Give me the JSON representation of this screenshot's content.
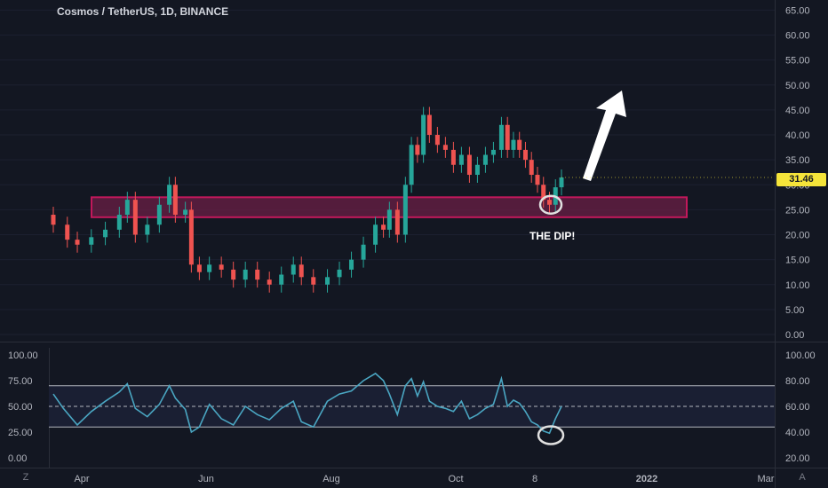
{
  "header": {
    "title": "Cosmos / TetherUS, 1D, BINANCE"
  },
  "price_tag": "31.46",
  "annotation": {
    "dip_label": "THE DIP!"
  },
  "corners": {
    "left": "Z",
    "right": "A"
  },
  "colors": {
    "background": "#131722",
    "up": "#26a69a",
    "down": "#ef5350",
    "zone_fill": "#6b1f45",
    "zone_stroke": "#c2185b",
    "rsi_line": "#4aa6c2",
    "axis_text": "#b2b5be",
    "price_tag": "#f5e43a"
  },
  "chart_data": [
    {
      "type": "candlestick",
      "title": "Cosmos / TetherUS, 1D, BINANCE",
      "y_ticks": [
        "0.00",
        "5.00",
        "10.00",
        "15.00",
        "20.00",
        "25.00",
        "30.00",
        "35.00",
        "40.00",
        "45.00",
        "50.00",
        "55.00",
        "60.00",
        "65.00"
      ],
      "ylim": [
        0,
        67
      ],
      "x_ticks": [
        "Apr",
        "Jun",
        "Aug",
        "Oct",
        "8",
        "2022",
        "Mar"
      ],
      "last_price": 31.46,
      "support_zone": [
        23.5,
        27.5
      ],
      "series": [
        {
          "x": "Mar 20",
          "close": 22.0
        },
        {
          "x": "Mar 27",
          "close": 19.0
        },
        {
          "x": "Apr 01",
          "close": 18.0
        },
        {
          "x": "Apr 08",
          "close": 19.5
        },
        {
          "x": "Apr 15",
          "close": 21.0
        },
        {
          "x": "Apr 22",
          "close": 24.0
        },
        {
          "x": "Apr 26",
          "close": 27.0
        },
        {
          "x": "Apr 30",
          "close": 20.0
        },
        {
          "x": "May 06",
          "close": 22.0
        },
        {
          "x": "May 12",
          "close": 26.0
        },
        {
          "x": "May 17",
          "close": 30.0
        },
        {
          "x": "May 20",
          "close": 24.0
        },
        {
          "x": "May 25",
          "close": 25.0
        },
        {
          "x": "May 28",
          "close": 14.0
        },
        {
          "x": "Jun 01",
          "close": 12.5
        },
        {
          "x": "Jun 06",
          "close": 14.0
        },
        {
          "x": "Jun 12",
          "close": 13.0
        },
        {
          "x": "Jun 18",
          "close": 11.0
        },
        {
          "x": "Jun 24",
          "close": 13.0
        },
        {
          "x": "Jun 30",
          "close": 11.0
        },
        {
          "x": "Jul 06",
          "close": 10.0
        },
        {
          "x": "Jul 12",
          "close": 12.0
        },
        {
          "x": "Jul 18",
          "close": 14.0
        },
        {
          "x": "Jul 22",
          "close": 11.5
        },
        {
          "x": "Jul 28",
          "close": 10.0
        },
        {
          "x": "Aug 04",
          "close": 11.5
        },
        {
          "x": "Aug 10",
          "close": 13.0
        },
        {
          "x": "Aug 16",
          "close": 15.0
        },
        {
          "x": "Aug 22",
          "close": 18.0
        },
        {
          "x": "Aug 28",
          "close": 22.0
        },
        {
          "x": "Sep 01",
          "close": 21.0
        },
        {
          "x": "Sep 04",
          "close": 25.0
        },
        {
          "x": "Sep 08",
          "close": 20.0
        },
        {
          "x": "Sep 12",
          "close": 30.0
        },
        {
          "x": "Sep 15",
          "close": 38.0
        },
        {
          "x": "Sep 18",
          "close": 36.0
        },
        {
          "x": "Sep 21",
          "close": 44.0
        },
        {
          "x": "Sep 24",
          "close": 40.0
        },
        {
          "x": "Sep 28",
          "close": 38.0
        },
        {
          "x": "Oct 02",
          "close": 37.0
        },
        {
          "x": "Oct 06",
          "close": 34.0
        },
        {
          "x": "Oct 10",
          "close": 36.0
        },
        {
          "x": "Oct 14",
          "close": 32.0
        },
        {
          "x": "Oct 18",
          "close": 34.0
        },
        {
          "x": "Oct 22",
          "close": 36.0
        },
        {
          "x": "Oct 26",
          "close": 37.0
        },
        {
          "x": "Oct 30",
          "close": 42.0
        },
        {
          "x": "Nov 02",
          "close": 37.0
        },
        {
          "x": "Nov 05",
          "close": 39.0
        },
        {
          "x": "Nov 08",
          "close": 37.0
        },
        {
          "x": "Nov 11",
          "close": 35.0
        },
        {
          "x": "Nov 14",
          "close": 32.0
        },
        {
          "x": "Nov 17",
          "close": 30.0
        },
        {
          "x": "Nov 20",
          "close": 27.0
        },
        {
          "x": "Nov 23",
          "close": 26.0
        },
        {
          "x": "Nov 26",
          "close": 29.5
        },
        {
          "x": "Nov 29",
          "close": 31.46
        }
      ]
    },
    {
      "type": "line",
      "y_ticks_left": [
        "0.00",
        "25.00",
        "50.00",
        "75.00",
        "100.00"
      ],
      "y_ticks_right": [
        "20.00",
        "40.00",
        "60.00",
        "80.00",
        "100.00"
      ],
      "ylim_left": [
        0,
        100
      ],
      "levels": {
        "upper": 70,
        "middle": 50,
        "lower": 30
      },
      "series": [
        {
          "x": "Mar 20",
          "y": 62
        },
        {
          "x": "Mar 25",
          "y": 48
        },
        {
          "x": "Apr 01",
          "y": 32
        },
        {
          "x": "Apr 08",
          "y": 45
        },
        {
          "x": "Apr 15",
          "y": 55
        },
        {
          "x": "Apr 22",
          "y": 64
        },
        {
          "x": "Apr 26",
          "y": 72
        },
        {
          "x": "Apr 30",
          "y": 48
        },
        {
          "x": "May 06",
          "y": 40
        },
        {
          "x": "May 12",
          "y": 52
        },
        {
          "x": "May 17",
          "y": 70
        },
        {
          "x": "May 20",
          "y": 58
        },
        {
          "x": "May 25",
          "y": 47
        },
        {
          "x": "May 28",
          "y": 25
        },
        {
          "x": "Jun 01",
          "y": 30
        },
        {
          "x": "Jun 06",
          "y": 52
        },
        {
          "x": "Jun 12",
          "y": 38
        },
        {
          "x": "Jun 18",
          "y": 32
        },
        {
          "x": "Jun 24",
          "y": 50
        },
        {
          "x": "Jun 30",
          "y": 42
        },
        {
          "x": "Jul 06",
          "y": 37
        },
        {
          "x": "Jul 12",
          "y": 48
        },
        {
          "x": "Jul 18",
          "y": 55
        },
        {
          "x": "Jul 22",
          "y": 35
        },
        {
          "x": "Jul 28",
          "y": 30
        },
        {
          "x": "Aug 04",
          "y": 55
        },
        {
          "x": "Aug 10",
          "y": 62
        },
        {
          "x": "Aug 16",
          "y": 65
        },
        {
          "x": "Aug 22",
          "y": 75
        },
        {
          "x": "Aug 28",
          "y": 82
        },
        {
          "x": "Sep 01",
          "y": 75
        },
        {
          "x": "Sep 04",
          "y": 62
        },
        {
          "x": "Sep 08",
          "y": 42
        },
        {
          "x": "Sep 12",
          "y": 70
        },
        {
          "x": "Sep 15",
          "y": 77
        },
        {
          "x": "Sep 18",
          "y": 60
        },
        {
          "x": "Sep 21",
          "y": 74
        },
        {
          "x": "Sep 24",
          "y": 55
        },
        {
          "x": "Sep 28",
          "y": 50
        },
        {
          "x": "Oct 02",
          "y": 48
        },
        {
          "x": "Oct 06",
          "y": 45
        },
        {
          "x": "Oct 10",
          "y": 55
        },
        {
          "x": "Oct 14",
          "y": 38
        },
        {
          "x": "Oct 18",
          "y": 42
        },
        {
          "x": "Oct 22",
          "y": 48
        },
        {
          "x": "Oct 26",
          "y": 52
        },
        {
          "x": "Oct 30",
          "y": 77
        },
        {
          "x": "Nov 02",
          "y": 50
        },
        {
          "x": "Nov 05",
          "y": 56
        },
        {
          "x": "Nov 08",
          "y": 53
        },
        {
          "x": "Nov 11",
          "y": 45
        },
        {
          "x": "Nov 14",
          "y": 35
        },
        {
          "x": "Nov 17",
          "y": 32
        },
        {
          "x": "Nov 20",
          "y": 26
        },
        {
          "x": "Nov 23",
          "y": 24
        },
        {
          "x": "Nov 26",
          "y": 38
        },
        {
          "x": "Nov 29",
          "y": 50
        }
      ]
    }
  ]
}
